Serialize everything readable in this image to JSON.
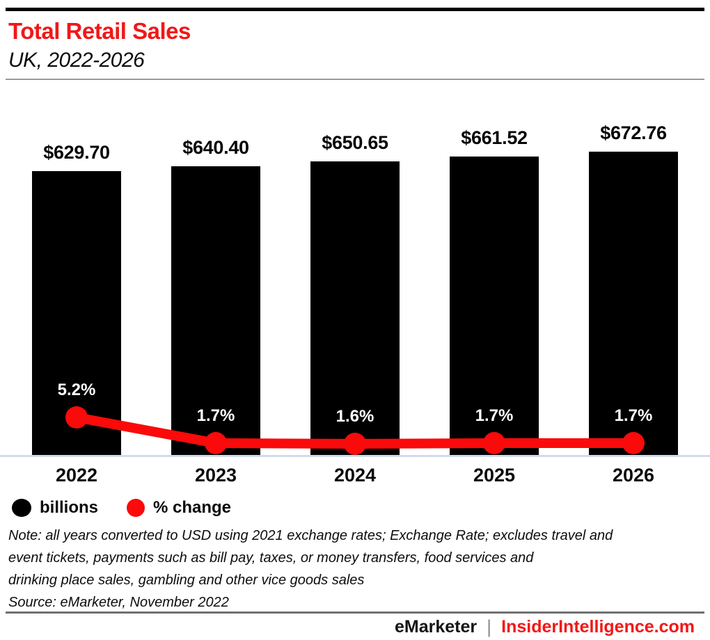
{
  "header": {
    "title": "Total Retail Sales",
    "subtitle": "UK, 2022-2026"
  },
  "chart_data": {
    "type": "bar",
    "title": "Total Retail Sales",
    "subtitle": "UK, 2022-2026",
    "categories": [
      "2022",
      "2023",
      "2024",
      "2025",
      "2026"
    ],
    "series": [
      {
        "name": "billions",
        "type": "bar",
        "unit": "USD billions",
        "values": [
          629.7,
          640.4,
          650.65,
          661.52,
          672.76
        ],
        "labels": [
          "$629.70",
          "$640.40",
          "$650.65",
          "$661.52",
          "$672.76"
        ],
        "color": "#000000"
      },
      {
        "name": "% change",
        "type": "line",
        "unit": "percent",
        "values": [
          5.2,
          1.7,
          1.6,
          1.7,
          1.7
        ],
        "labels": [
          "5.2%",
          "1.7%",
          "1.6%",
          "1.7%",
          "1.7%"
        ],
        "color": "#fa0a0a"
      }
    ],
    "ylim_bar": [
      0,
      672.76
    ],
    "grid": false,
    "legend_position": "bottom-left"
  },
  "legend": {
    "items": [
      {
        "label": "billions",
        "color": "#000000"
      },
      {
        "label": "% change",
        "color": "#fa0a0a"
      }
    ]
  },
  "notes": {
    "lines": [
      "Note: all years converted to USD using 2021 exchange rates; Exchange Rate; excludes travel and",
      "event tickets, payments such as bill pay, taxes, or money transfers, food services and",
      "drinking place sales, gambling and other vice goods sales"
    ],
    "source": "Source: eMarketer, November 2022"
  },
  "footer": {
    "brand_left": "eMarketer",
    "separator": "|",
    "brand_right": "InsiderIntelligence.com"
  },
  "colors": {
    "accent_red": "#f21717",
    "line_red": "#fa0a0a",
    "bar_black": "#000000",
    "axis_line": "#d2dbec",
    "rule_gray": "#9a9a9a",
    "footer_rule": "#6f6f6f",
    "separator_gray": "#8f8f8f"
  }
}
